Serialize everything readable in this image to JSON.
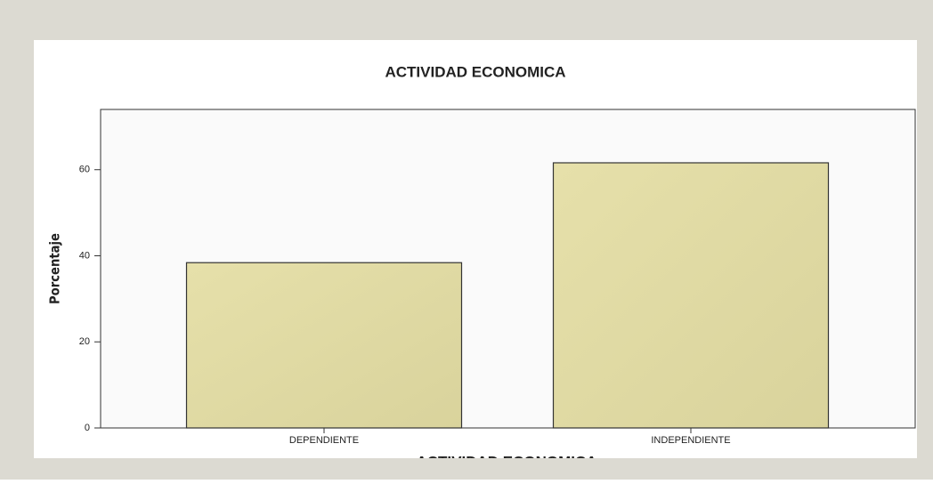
{
  "chart_data": {
    "type": "bar",
    "title": "ACTIVIDAD ECONOMICA",
    "categories": [
      "DEPENDIENTE",
      "INDEPENDIENTE"
    ],
    "values": [
      38.4,
      61.6
    ],
    "color": "#ddd7a0",
    "x_label": "ACTIVIDAD ECONOMICA",
    "y_label": "Porcentaje",
    "ylim": [
      0,
      74
    ],
    "yticks": [
      0,
      20,
      40,
      60
    ],
    "grid": false
  }
}
